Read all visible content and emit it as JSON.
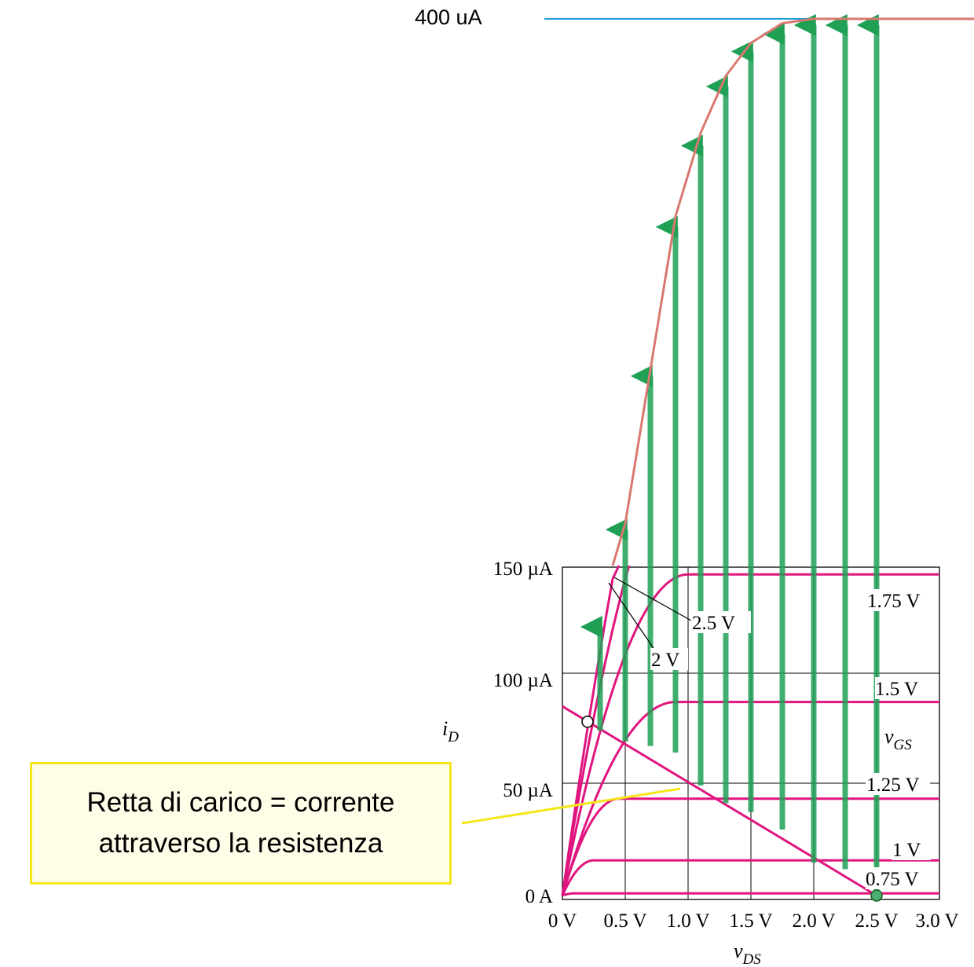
{
  "chart_data": {
    "type": "line",
    "xlabel": "v",
    "xlabel_sub": "DS",
    "ylabel": "i",
    "ylabel_sub": "D",
    "x_ticks": [
      "0 V",
      "0.5 V",
      "1.0 V",
      "1.5 V",
      "2.0 V",
      "2.5 V",
      "3.0 V"
    ],
    "y_ticks": [
      "0 A",
      "50 µA",
      "100 µA",
      "150 µA"
    ],
    "xlim": [
      0,
      3
    ],
    "ylim": [
      0,
      150
    ],
    "top_level_label": "400 uA",
    "top_level_value_uA": 400,
    "family_label": "v",
    "family_label_sub": "GS",
    "curves": [
      {
        "label": "0.75 V",
        "vgs": 0.75,
        "sat_current_uA": 1,
        "vsat": 0.1
      },
      {
        "label": "1 V",
        "vgs": 1.0,
        "sat_current_uA": 16,
        "vsat": 0.25
      },
      {
        "label": "1.25 V",
        "vgs": 1.25,
        "sat_current_uA": 44,
        "vsat": 0.45
      },
      {
        "label": "1.5 V",
        "vgs": 1.5,
        "sat_current_uA": 88,
        "vsat": 0.9
      },
      {
        "label": "1.75 V",
        "vgs": 1.75,
        "sat_current_uA": 146,
        "vsat": 1.0
      },
      {
        "label": "2 V",
        "vgs": 2.0,
        "sat_current_uA": 225,
        "vsat": 1.25
      },
      {
        "label": "2.5 V",
        "vgs": 2.5,
        "sat_current_uA": 400,
        "vsat": 2.0
      }
    ],
    "load_line": {
      "x_intercept_V": 2.5,
      "y_intercept_uA": 86
    },
    "operating_points": [
      {
        "vds": 0.2,
        "id_uA": 79
      },
      {
        "vds": 2.5,
        "id_uA": 0
      }
    ],
    "transfer_curve": [
      {
        "vds": 0.4,
        "id_uA": 150
      },
      {
        "vds": 0.5,
        "id_uA": 170
      },
      {
        "vds": 0.7,
        "id_uA": 240
      },
      {
        "vds": 0.9,
        "id_uA": 310
      },
      {
        "vds": 1.1,
        "id_uA": 348
      },
      {
        "vds": 1.3,
        "id_uA": 374
      },
      {
        "vds": 1.5,
        "id_uA": 389
      },
      {
        "vds": 1.75,
        "id_uA": 398
      },
      {
        "vds": 2.0,
        "id_uA": 400
      },
      {
        "vds": 3.3,
        "id_uA": 400
      }
    ],
    "arrows": [
      {
        "vds": 0.3,
        "from_uA": 75,
        "to_uA": 125
      },
      {
        "vds": 0.5,
        "from_uA": 70,
        "to_uA": 170
      },
      {
        "vds": 0.7,
        "from_uA": 68,
        "to_uA": 240
      },
      {
        "vds": 0.9,
        "from_uA": 65,
        "to_uA": 308
      },
      {
        "vds": 1.1,
        "from_uA": 50,
        "to_uA": 345
      },
      {
        "vds": 1.3,
        "from_uA": 42,
        "to_uA": 372
      },
      {
        "vds": 1.5,
        "from_uA": 38,
        "to_uA": 388
      },
      {
        "vds": 1.75,
        "from_uA": 30,
        "to_uA": 396
      },
      {
        "vds": 2.0,
        "from_uA": 15,
        "to_uA": 400
      },
      {
        "vds": 2.25,
        "from_uA": 12,
        "to_uA": 400
      },
      {
        "vds": 2.5,
        "from_uA": 0,
        "to_uA": 400
      }
    ]
  },
  "colors": {
    "curves": "#e0157f",
    "arrows": "#1fa055",
    "transfer": "#d97870",
    "reference_line": "#1e9bd7",
    "callout_border": "#f5e61c",
    "pointer": "#f5e61c"
  },
  "callout": {
    "line1": "Retta di carico = corrente",
    "line2": "attraverso la resistenza"
  }
}
